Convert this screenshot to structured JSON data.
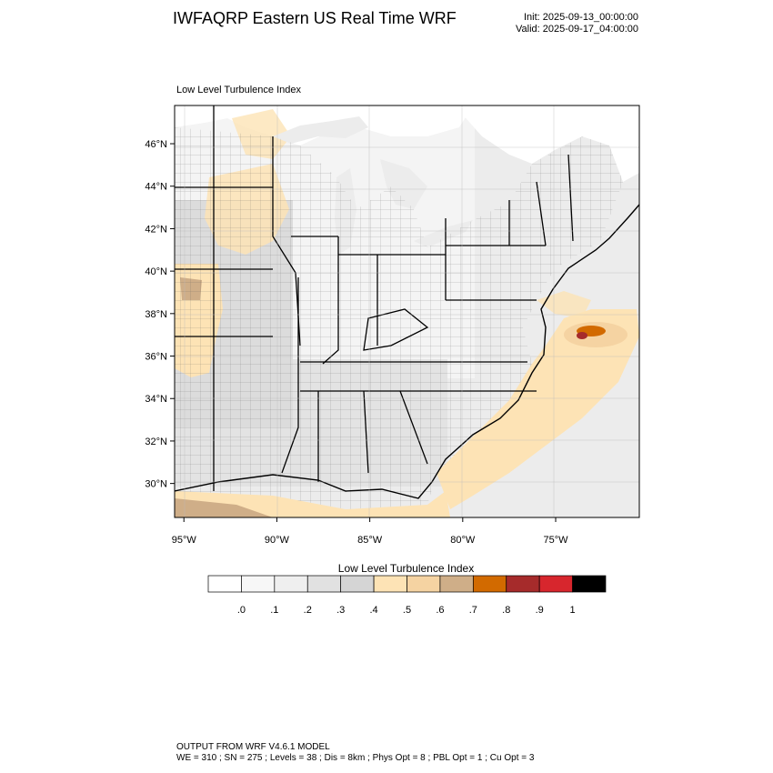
{
  "header": {
    "title": "IWFAQRP Eastern US Real Time WRF",
    "init": "Init: 2025-09-13_00:00:00",
    "valid": "Valid: 2025-09-17_04:00:00",
    "subtitle": "Low Level Turbulence Index"
  },
  "axes": {
    "lat_labels": [
      "46°N",
      "44°N",
      "42°N",
      "40°N",
      "38°N",
      "36°N",
      "34°N",
      "32°N",
      "30°N"
    ],
    "lat_values": [
      46,
      44,
      42,
      40,
      38,
      36,
      34,
      32,
      30
    ],
    "lon_labels": [
      "95°W",
      "90°W",
      "85°W",
      "80°W",
      "75°W"
    ],
    "lon_values": [
      -95,
      -90,
      -85,
      -80,
      -75
    ],
    "lat_range": [
      28.4,
      47.8
    ],
    "lon_range": [
      -95.5,
      -70.5
    ]
  },
  "colorbar": {
    "title": "Low Level Turbulence Index",
    "colors": [
      "#ffffff",
      "#f7f7f7",
      "#efefef",
      "#e1e1e1",
      "#d5d5d5",
      "#fde3b5",
      "#f5d3a2",
      "#cfae88",
      "#d26a00",
      "#a62b2b",
      "#d7262d",
      "#000000"
    ],
    "tick_labels": [
      ".0",
      ".1",
      ".2",
      ".3",
      ".4",
      ".5",
      ".6",
      ".7",
      ".8",
      ".9",
      "1"
    ]
  },
  "footer": {
    "line1": "OUTPUT FROM WRF V4.6.1 MODEL",
    "line2": "WE = 310 ; SN = 275 ; Levels = 38 ; Dis = 8km ; Phys Opt = 8 ; PBL Opt = 1 ; Cu Opt = 3"
  }
}
